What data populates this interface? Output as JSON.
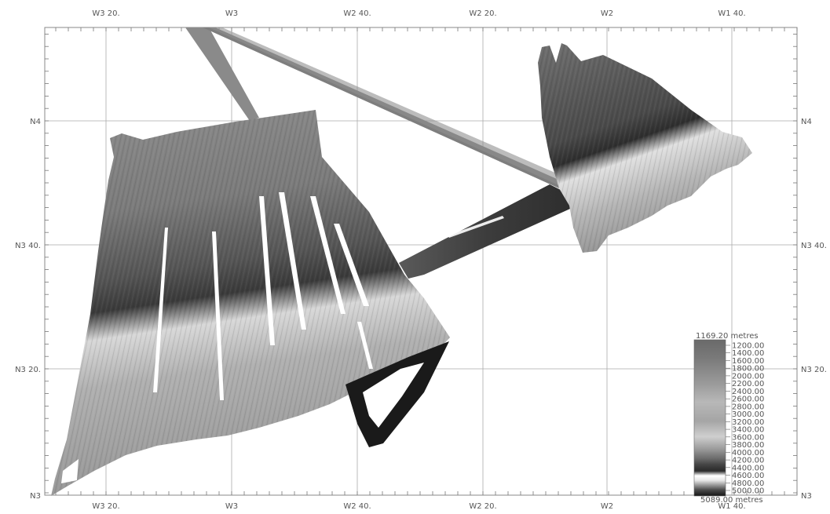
{
  "map": {
    "lon_labels": [
      "W3 20.",
      "W3",
      "W2 40.",
      "W2 20.",
      "W2",
      "W1 40."
    ],
    "lat_labels": [
      "N4",
      "N3 40.",
      "N3 20.",
      "N3"
    ],
    "colorbar": {
      "max_label": "1169.20 metres",
      "min_label": "5089.00 metres",
      "ticks": [
        "1200.00",
        "1400.00",
        "1600.00",
        "1800.00",
        "2000.00",
        "2200.00",
        "2400.00",
        "2600.00",
        "2800.00",
        "3000.00",
        "3200.00",
        "3400.00",
        "3600.00",
        "3800.00",
        "4000.00",
        "4200.00",
        "4400.00",
        "4600.00",
        "4800.00",
        "5000.00"
      ]
    },
    "colors": {
      "frame": "#888888",
      "grid": "#aaaaaa",
      "label": "#555555"
    }
  }
}
